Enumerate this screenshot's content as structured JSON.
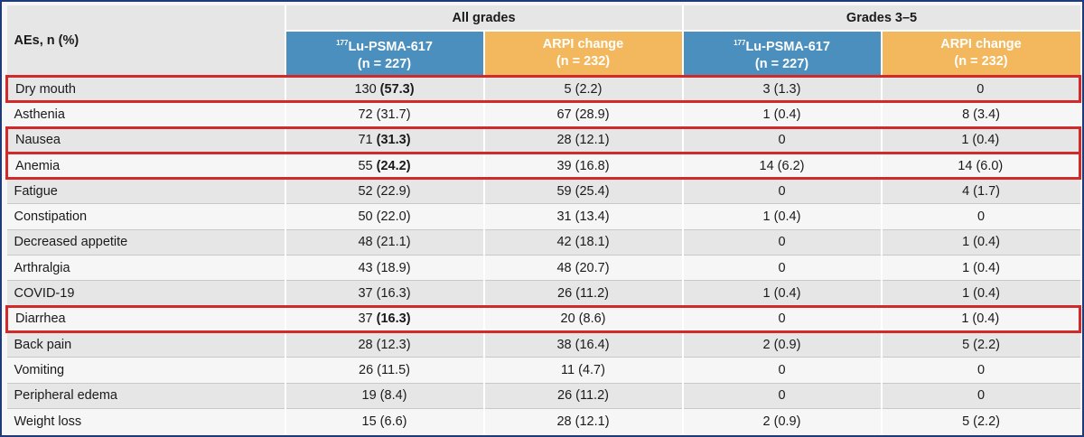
{
  "header": {
    "aes_label": "AEs, n (%)",
    "group_all": "All grades",
    "group_g35": "Grades 3–5",
    "lu_sup": "177",
    "lu_name": "Lu-PSMA-617",
    "lu_n": "(n = 227)",
    "arpi_name": "ARPI change",
    "arpi_n": "(n = 232)"
  },
  "colors": {
    "lu_header": "#4a8fbe",
    "arpi_header": "#f3b85d",
    "highlight_border": "#d12a2a",
    "frame_border": "#1f3a78"
  },
  "rows": [
    {
      "name": "Dry mouth",
      "highlight": true,
      "lu_all_n": "130",
      "lu_all_pct": "(57.3)",
      "lu_all_bold": true,
      "arpi_all": "5 (2.2)",
      "lu_g35": "3 (1.3)",
      "arpi_g35": "0"
    },
    {
      "name": "Asthenia",
      "highlight": false,
      "lu_all_n": "72",
      "lu_all_pct": "(31.7)",
      "lu_all_bold": false,
      "arpi_all": "67 (28.9)",
      "lu_g35": "1 (0.4)",
      "arpi_g35": "8 (3.4)"
    },
    {
      "name": "Nausea",
      "highlight": true,
      "lu_all_n": "71",
      "lu_all_pct": "(31.3)",
      "lu_all_bold": true,
      "arpi_all": "28 (12.1)",
      "lu_g35": "0",
      "arpi_g35": "1 (0.4)"
    },
    {
      "name": "Anemia",
      "highlight": true,
      "lu_all_n": "55",
      "lu_all_pct": "(24.2)",
      "lu_all_bold": true,
      "arpi_all": "39 (16.8)",
      "lu_g35": "14 (6.2)",
      "arpi_g35": "14 (6.0)"
    },
    {
      "name": "Fatigue",
      "highlight": false,
      "lu_all_n": "52",
      "lu_all_pct": "(22.9)",
      "lu_all_bold": false,
      "arpi_all": "59 (25.4)",
      "lu_g35": "0",
      "arpi_g35": "4 (1.7)"
    },
    {
      "name": "Constipation",
      "highlight": false,
      "lu_all_n": "50",
      "lu_all_pct": "(22.0)",
      "lu_all_bold": false,
      "arpi_all": "31 (13.4)",
      "lu_g35": "1 (0.4)",
      "arpi_g35": "0"
    },
    {
      "name": "Decreased appetite",
      "highlight": false,
      "lu_all_n": "48",
      "lu_all_pct": "(21.1)",
      "lu_all_bold": false,
      "arpi_all": "42 (18.1)",
      "lu_g35": "0",
      "arpi_g35": "1 (0.4)"
    },
    {
      "name": "Arthralgia",
      "highlight": false,
      "lu_all_n": "43",
      "lu_all_pct": "(18.9)",
      "lu_all_bold": false,
      "arpi_all": "48 (20.7)",
      "lu_g35": "0",
      "arpi_g35": "1 (0.4)"
    },
    {
      "name": "COVID-19",
      "highlight": false,
      "lu_all_n": "37",
      "lu_all_pct": "(16.3)",
      "lu_all_bold": false,
      "arpi_all": "26 (11.2)",
      "lu_g35": "1 (0.4)",
      "arpi_g35": "1 (0.4)"
    },
    {
      "name": "Diarrhea",
      "highlight": true,
      "lu_all_n": "37",
      "lu_all_pct": "(16.3)",
      "lu_all_bold": true,
      "arpi_all": "20 (8.6)",
      "lu_g35": "0",
      "arpi_g35": "1 (0.4)"
    },
    {
      "name": "Back pain",
      "highlight": false,
      "lu_all_n": "28",
      "lu_all_pct": "(12.3)",
      "lu_all_bold": false,
      "arpi_all": "38 (16.4)",
      "lu_g35": "2 (0.9)",
      "arpi_g35": "5 (2.2)"
    },
    {
      "name": "Vomiting",
      "highlight": false,
      "lu_all_n": "26",
      "lu_all_pct": "(11.5)",
      "lu_all_bold": false,
      "arpi_all": "11 (4.7)",
      "lu_g35": "0",
      "arpi_g35": "0"
    },
    {
      "name": "Peripheral edema",
      "highlight": false,
      "lu_all_n": "19",
      "lu_all_pct": "(8.4)",
      "lu_all_bold": false,
      "arpi_all": "26 (11.2)",
      "lu_g35": "0",
      "arpi_g35": "0"
    },
    {
      "name": "Weight loss",
      "highlight": false,
      "lu_all_n": "15",
      "lu_all_pct": "(6.6)",
      "lu_all_bold": false,
      "arpi_all": "28 (12.1)",
      "lu_g35": "2 (0.9)",
      "arpi_g35": "5 (2.2)"
    }
  ]
}
